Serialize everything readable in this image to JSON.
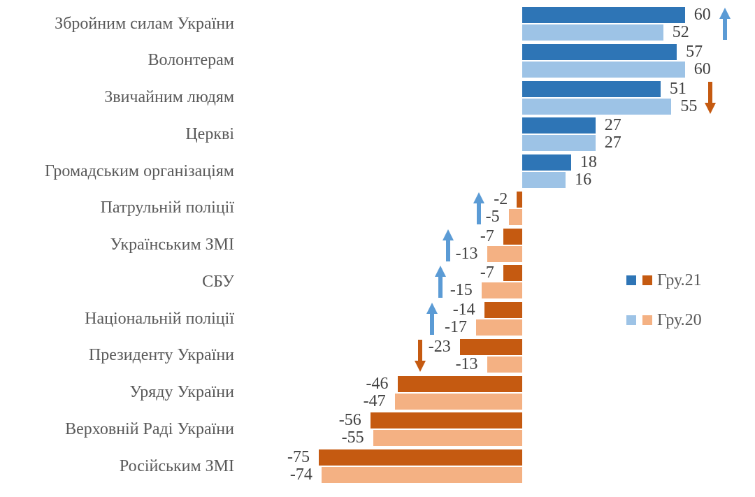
{
  "chart_data": {
    "type": "bar",
    "orientation": "horizontal",
    "grid": false,
    "axes_visible": false,
    "xlim": [
      -80,
      65
    ],
    "legend_position": "middle-right",
    "categories": [
      "Збройним силам України",
      "Волонтерам",
      "Звичайним людям",
      "Церкві",
      "Громадським організаціям",
      "Патрульній поліції",
      "Українським ЗМІ",
      "СБУ",
      "Національній поліції",
      "Президенту України",
      "Уряду України",
      "Верховній Раді України",
      "Російським ЗМІ"
    ],
    "series": [
      {
        "name": "Гру.21",
        "values": [
          60,
          57,
          51,
          27,
          18,
          -2,
          -7,
          -7,
          -14,
          -23,
          -46,
          -56,
          -75
        ]
      },
      {
        "name": "Гру.20",
        "values": [
          52,
          60,
          55,
          27,
          16,
          -5,
          -13,
          -15,
          -17,
          -13,
          -47,
          -55,
          -74
        ]
      }
    ],
    "trend_arrows": [
      "up",
      null,
      "down",
      null,
      null,
      "up",
      "up",
      "up",
      "up",
      "down",
      null,
      null,
      null
    ],
    "colors": {
      "gru21_positive": "#2E75B6",
      "gru20_positive": "#9DC3E6",
      "gru21_negative": "#C55A11",
      "gru20_negative": "#F4B183",
      "arrow_up": "#5B9BD5",
      "arrow_down": "#C55A11",
      "category_text": "#595959",
      "value_text": "#404040",
      "background": "#FFFFFF"
    }
  }
}
